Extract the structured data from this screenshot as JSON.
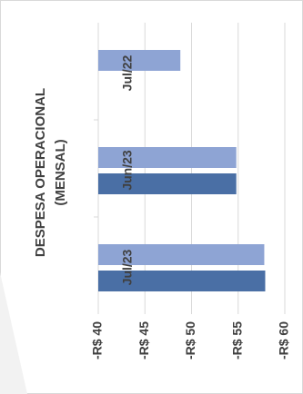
{
  "chart_data": {
    "type": "bar",
    "orientation": "horizontal",
    "title": [
      "DESPESA OPERACIONAL",
      "(MENSAL)"
    ],
    "categories": [
      "Jul/22",
      "Jun/23",
      "Jul/23"
    ],
    "series": [
      {
        "color": "#8ea4d4",
        "values": [
          -48.8,
          -54.8,
          -57.8
        ]
      },
      {
        "color": "#4a6fa5",
        "values": [
          null,
          -54.8,
          -57.9
        ]
      }
    ],
    "xlim": [
      -40,
      -60
    ],
    "xticks": [
      {
        "value": -40,
        "label": "-R$ 40"
      },
      {
        "value": -45,
        "label": "-R$ 45"
      },
      {
        "value": -50,
        "label": "-R$ 50"
      },
      {
        "value": -55,
        "label": "-R$ 55"
      },
      {
        "value": -60,
        "label": "-R$ 60"
      }
    ],
    "grid": true
  }
}
